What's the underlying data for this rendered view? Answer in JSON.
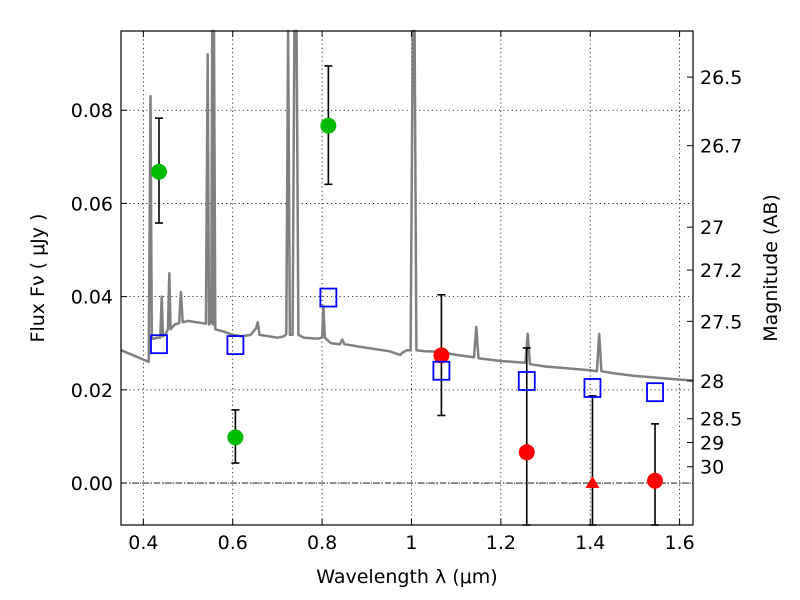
{
  "chart_data": {
    "type": "scatter",
    "xlabel": "Wavelength  λ (μm)",
    "ylabel": "Flux  Fν  ( μJy )",
    "y2label": "Magnitude (AB)",
    "xlim": [
      0.35,
      1.63
    ],
    "ylim": [
      -0.009,
      0.097
    ],
    "grid": true,
    "x_ticks": [
      0.4,
      0.6,
      0.8,
      1.0,
      1.2,
      1.4,
      1.6
    ],
    "x_tick_labels": [
      "0.4",
      "0.6",
      "0.8",
      "1",
      "1.2",
      "1.4",
      "1.6"
    ],
    "y_ticks": [
      0.0,
      0.02,
      0.04,
      0.06,
      0.08
    ],
    "y_tick_labels": [
      "0.00",
      "0.02",
      "0.04",
      "0.06",
      "0.08"
    ],
    "y2_ticks": [
      {
        "label": "26.5",
        "flux": 0.0871
      },
      {
        "label": "26.7",
        "flux": 0.0724
      },
      {
        "label": "27",
        "flux": 0.0549
      },
      {
        "label": "27.2",
        "flux": 0.0457
      },
      {
        "label": "27.5",
        "flux": 0.0347
      },
      {
        "label": "28",
        "flux": 0.0219
      },
      {
        "label": "28.5",
        "flux": 0.0138
      },
      {
        "label": "29",
        "flux": 0.0087
      },
      {
        "label": "30",
        "flux": 0.0035
      }
    ],
    "series": [
      {
        "name": "green detections",
        "color": "#00bb00",
        "marker": "circle",
        "points": [
          {
            "x": 0.435,
            "y": 0.0668,
            "ylo": 0.0558,
            "yhi": 0.0783
          },
          {
            "x": 0.606,
            "y": 0.0098,
            "ylo": 0.0043,
            "yhi": 0.0157
          },
          {
            "x": 0.814,
            "y": 0.0767,
            "ylo": 0.0641,
            "yhi": 0.0895
          }
        ]
      },
      {
        "name": "red detections",
        "color": "#ff0000",
        "marker": "circle",
        "points": [
          {
            "x": 1.067,
            "y": 0.0274,
            "ylo": 0.0145,
            "yhi": 0.0404
          },
          {
            "x": 1.258,
            "y": 0.0066,
            "ylo": -0.009,
            "yhi": 0.029
          },
          {
            "x": 1.545,
            "y": 0.0005,
            "ylo": -0.009,
            "yhi": 0.0127
          }
        ]
      },
      {
        "name": "red upper limit",
        "color": "#ff0000",
        "marker": "triangle",
        "points": [
          {
            "x": 1.405,
            "y": 0.0,
            "ylo": -0.009,
            "yhi": 0.0187
          }
        ]
      },
      {
        "name": "model photometry",
        "color": "#0000ff",
        "marker": "square-open",
        "points": [
          {
            "x": 0.435,
            "y": 0.0298
          },
          {
            "x": 0.606,
            "y": 0.0296
          },
          {
            "x": 0.814,
            "y": 0.0398
          },
          {
            "x": 1.067,
            "y": 0.0241
          },
          {
            "x": 1.258,
            "y": 0.0219
          },
          {
            "x": 1.405,
            "y": 0.0204
          },
          {
            "x": 1.545,
            "y": 0.0195
          }
        ]
      }
    ],
    "model_spectrum": {
      "name": "SED model",
      "color": "#808080",
      "points": [
        [
          0.35,
          0.0285
        ],
        [
          0.38,
          0.0273
        ],
        [
          0.4,
          0.0265
        ],
        [
          0.412,
          0.026
        ],
        [
          0.416,
          0.083
        ],
        [
          0.419,
          0.031
        ],
        [
          0.425,
          0.031
        ],
        [
          0.43,
          0.0312
        ],
        [
          0.438,
          0.0312
        ],
        [
          0.441,
          0.04
        ],
        [
          0.444,
          0.0315
        ],
        [
          0.45,
          0.032
        ],
        [
          0.455,
          0.033
        ],
        [
          0.458,
          0.045
        ],
        [
          0.461,
          0.033
        ],
        [
          0.47,
          0.034
        ],
        [
          0.48,
          0.0343
        ],
        [
          0.484,
          0.041
        ],
        [
          0.488,
          0.0345
        ],
        [
          0.5,
          0.0348
        ],
        [
          0.52,
          0.0345
        ],
        [
          0.54,
          0.0342
        ],
        [
          0.544,
          0.092
        ],
        [
          0.547,
          0.034
        ],
        [
          0.552,
          0.0345
        ],
        [
          0.554,
          0.097
        ],
        [
          0.556,
          0.034
        ],
        [
          0.558,
          0.097
        ],
        [
          0.561,
          0.033
        ],
        [
          0.58,
          0.0325
        ],
        [
          0.6,
          0.0318
        ],
        [
          0.62,
          0.0315
        ],
        [
          0.64,
          0.0318
        ],
        [
          0.652,
          0.0332
        ],
        [
          0.656,
          0.0345
        ],
        [
          0.66,
          0.0318
        ],
        [
          0.7,
          0.0312
        ],
        [
          0.715,
          0.0315
        ],
        [
          0.72,
          0.032
        ],
        [
          0.724,
          0.097
        ],
        [
          0.728,
          0.0318
        ],
        [
          0.734,
          0.0318
        ],
        [
          0.738,
          0.097
        ],
        [
          0.743,
          0.097
        ],
        [
          0.747,
          0.0318
        ],
        [
          0.76,
          0.0312
        ],
        [
          0.79,
          0.031
        ],
        [
          0.8,
          0.0312
        ],
        [
          0.803,
          0.038
        ],
        [
          0.806,
          0.0312
        ],
        [
          0.82,
          0.03
        ],
        [
          0.84,
          0.0298
        ],
        [
          0.845,
          0.0308
        ],
        [
          0.85,
          0.0298
        ],
        [
          0.9,
          0.029
        ],
        [
          0.95,
          0.0283
        ],
        [
          0.975,
          0.0275
        ],
        [
          0.98,
          0.028
        ],
        [
          0.99,
          0.0285
        ],
        [
          0.998,
          0.0285
        ],
        [
          1.003,
          0.097
        ],
        [
          1.007,
          0.097
        ],
        [
          1.011,
          0.0285
        ],
        [
          1.03,
          0.0283
        ],
        [
          1.06,
          0.0282
        ],
        [
          1.1,
          0.0275
        ],
        [
          1.14,
          0.027
        ],
        [
          1.145,
          0.0335
        ],
        [
          1.15,
          0.0268
        ],
        [
          1.2,
          0.0262
        ],
        [
          1.255,
          0.0258
        ],
        [
          1.26,
          0.032
        ],
        [
          1.265,
          0.0255
        ],
        [
          1.3,
          0.025
        ],
        [
          1.4,
          0.0242
        ],
        [
          1.415,
          0.024
        ],
        [
          1.42,
          0.032
        ],
        [
          1.425,
          0.024
        ],
        [
          1.45,
          0.0236
        ],
        [
          1.5,
          0.023
        ],
        [
          1.55,
          0.0226
        ],
        [
          1.6,
          0.0222
        ],
        [
          1.63,
          0.022
        ]
      ]
    }
  }
}
